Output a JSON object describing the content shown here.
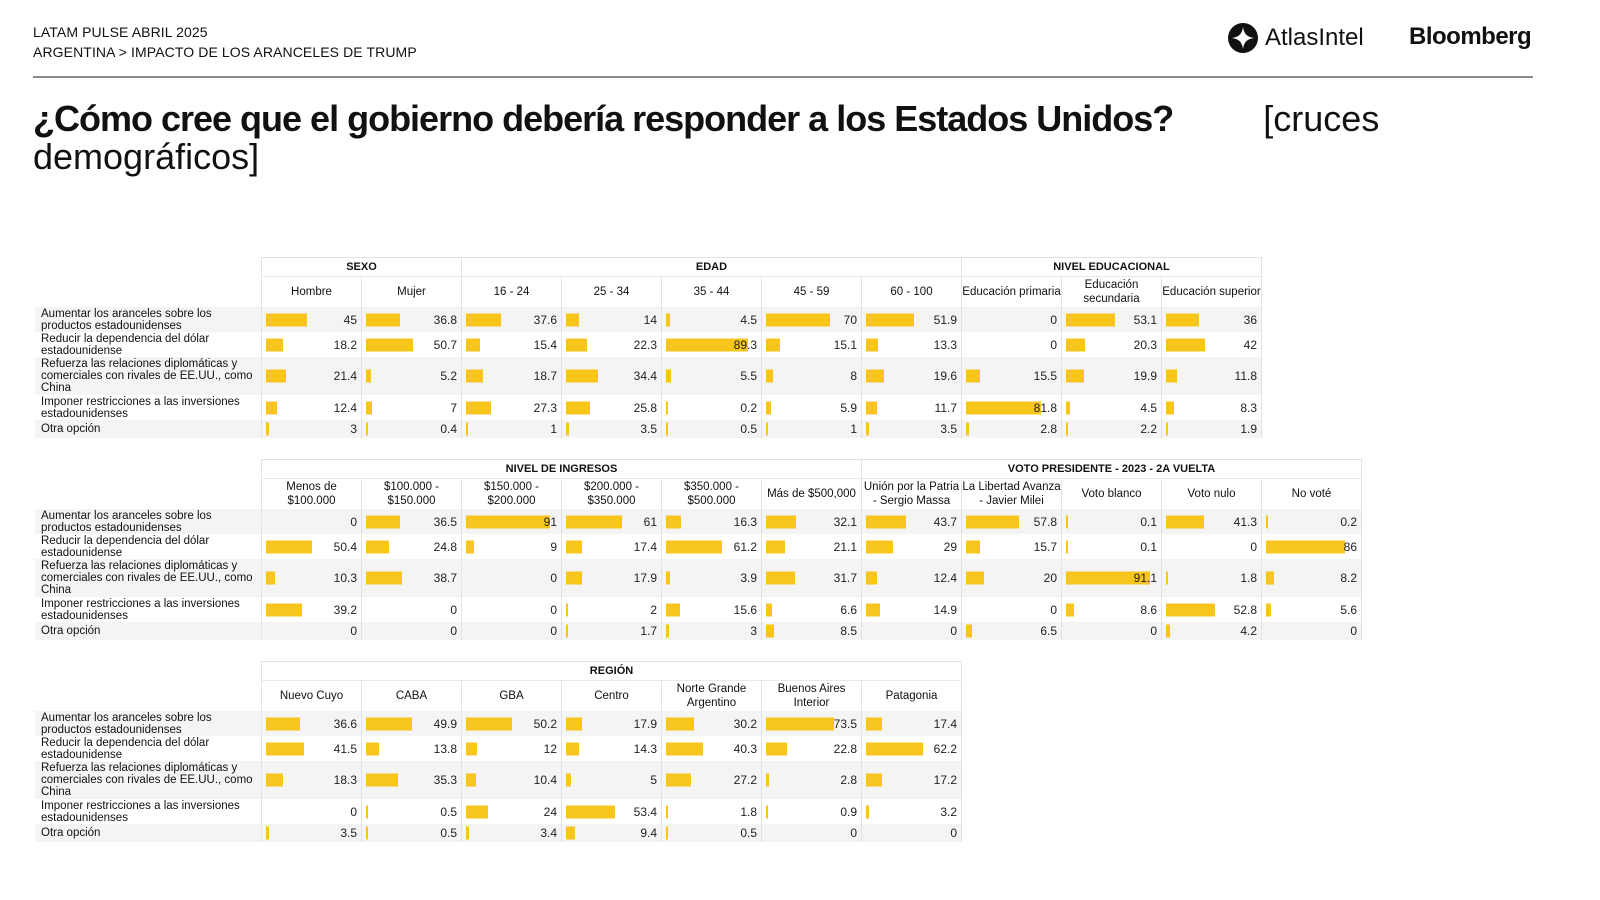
{
  "header": {
    "line1": "LATAM PULSE ABRIL 2025",
    "line2": "ARGENTINA > IMPACTO DE LOS ARANCELES DE TRUMP",
    "logo_atlas": "AtlasIntel",
    "logo_bloomberg": "Bloomberg",
    "icons": {
      "atlas_logo": "atlasintel-logo-icon"
    }
  },
  "title": {
    "question": "¿Cómo cree que el gobierno debería responder a los Estados Unidos?",
    "subtitle": "[cruces demográficos]"
  },
  "colors": {
    "bar": "#f7c51c",
    "rule": "#8a8a8a",
    "row_alt": "#f4f4f4"
  },
  "chart_data": {
    "type": "table",
    "title": "¿Cómo cree que el gobierno debería responder a los Estados Unidos?",
    "unit": "%",
    "bar_scale_max": 100,
    "row_labels": [
      "Aumentar los aranceles sobre los productos estadounidenses",
      "Reducir la dependencia del dólar estadounidense",
      "Refuerza las relaciones diplomáticas y comerciales con rivales de EE.UU., como China",
      "Imponer restricciones a las inversiones estadounidenses",
      "Otra opción"
    ],
    "tables": [
      {
        "groups": [
          {
            "name": "SEXO",
            "columns": [
              {
                "label": "Hombre",
                "values": [
                  45,
                  18.2,
                  21.4,
                  12.4,
                  3
                ]
              },
              {
                "label": "Mujer",
                "values": [
                  36.8,
                  50.7,
                  5.2,
                  7,
                  0.4
                ]
              }
            ]
          },
          {
            "name": "EDAD",
            "columns": [
              {
                "label": "16 - 24",
                "values": [
                  37.6,
                  15.4,
                  18.7,
                  27.3,
                  1
                ]
              },
              {
                "label": "25 - 34",
                "values": [
                  14,
                  22.3,
                  34.4,
                  25.8,
                  3.5
                ]
              },
              {
                "label": "35 - 44",
                "values": [
                  4.5,
                  89.3,
                  5.5,
                  0.2,
                  0.5
                ]
              },
              {
                "label": "45 - 59",
                "values": [
                  70,
                  15.1,
                  8,
                  5.9,
                  1
                ]
              },
              {
                "label": "60 - 100",
                "values": [
                  51.9,
                  13.3,
                  19.6,
                  11.7,
                  3.5
                ]
              }
            ]
          },
          {
            "name": "NIVEL EDUCACIONAL",
            "columns": [
              {
                "label": "Educación primaria",
                "values": [
                  0,
                  0,
                  15.5,
                  81.8,
                  2.8
                ]
              },
              {
                "label": "Educación secundaria",
                "values": [
                  53.1,
                  20.3,
                  19.9,
                  4.5,
                  2.2
                ]
              },
              {
                "label": "Educación superior",
                "values": [
                  36,
                  42,
                  11.8,
                  8.3,
                  1.9
                ]
              }
            ]
          }
        ]
      },
      {
        "groups": [
          {
            "name": "NIVEL DE INGRESOS",
            "columns": [
              {
                "label": "Menos de $100.000",
                "values": [
                  0,
                  50.4,
                  10.3,
                  39.2,
                  0
                ]
              },
              {
                "label": "$100.000 - $150.000",
                "values": [
                  36.5,
                  24.8,
                  38.7,
                  0,
                  0
                ]
              },
              {
                "label": "$150.000 - $200.000",
                "values": [
                  91,
                  9,
                  0,
                  0,
                  0
                ]
              },
              {
                "label": "$200.000 - $350.000",
                "values": [
                  61,
                  17.4,
                  17.9,
                  2,
                  1.7
                ]
              },
              {
                "label": "$350.000 - $500.000",
                "values": [
                  16.3,
                  61.2,
                  3.9,
                  15.6,
                  3
                ]
              },
              {
                "label": "Más de $500,000",
                "values": [
                  32.1,
                  21.1,
                  31.7,
                  6.6,
                  8.5
                ]
              }
            ]
          },
          {
            "name": "VOTO PRESIDENTE - 2023 - 2A VUELTA",
            "columns": [
              {
                "label": "Unión por la Patria - Sergio Massa",
                "values": [
                  43.7,
                  29,
                  12.4,
                  14.9,
                  0
                ]
              },
              {
                "label": "La Libertad Avanza - Javier Milei",
                "values": [
                  57.8,
                  15.7,
                  20,
                  0,
                  6.5
                ]
              },
              {
                "label": "Voto blanco",
                "values": [
                  0.1,
                  0.1,
                  91.1,
                  8.6,
                  0
                ]
              },
              {
                "label": "Voto nulo",
                "values": [
                  41.3,
                  0,
                  1.8,
                  52.8,
                  4.2
                ]
              },
              {
                "label": "No voté",
                "values": [
                  0.2,
                  86,
                  8.2,
                  5.6,
                  0
                ]
              }
            ]
          }
        ]
      },
      {
        "groups": [
          {
            "name": "REGIÓN",
            "columns": [
              {
                "label": "Nuevo Cuyo",
                "values": [
                  36.6,
                  41.5,
                  18.3,
                  0,
                  3.5
                ]
              },
              {
                "label": "CABA",
                "values": [
                  49.9,
                  13.8,
                  35.3,
                  0.5,
                  0.5
                ]
              },
              {
                "label": "GBA",
                "values": [
                  50.2,
                  12,
                  10.4,
                  24,
                  3.4
                ]
              },
              {
                "label": "Centro",
                "values": [
                  17.9,
                  14.3,
                  5,
                  53.4,
                  9.4
                ]
              },
              {
                "label": "Norte Grande Argentino",
                "values": [
                  30.2,
                  40.3,
                  27.2,
                  1.8,
                  0.5
                ]
              },
              {
                "label": "Buenos Aires Interior",
                "values": [
                  73.5,
                  22.8,
                  2.8,
                  0.9,
                  0
                ]
              },
              {
                "label": "Patagonia",
                "values": [
                  17.4,
                  62.2,
                  17.2,
                  3.2,
                  0
                ]
              }
            ]
          }
        ]
      }
    ]
  }
}
